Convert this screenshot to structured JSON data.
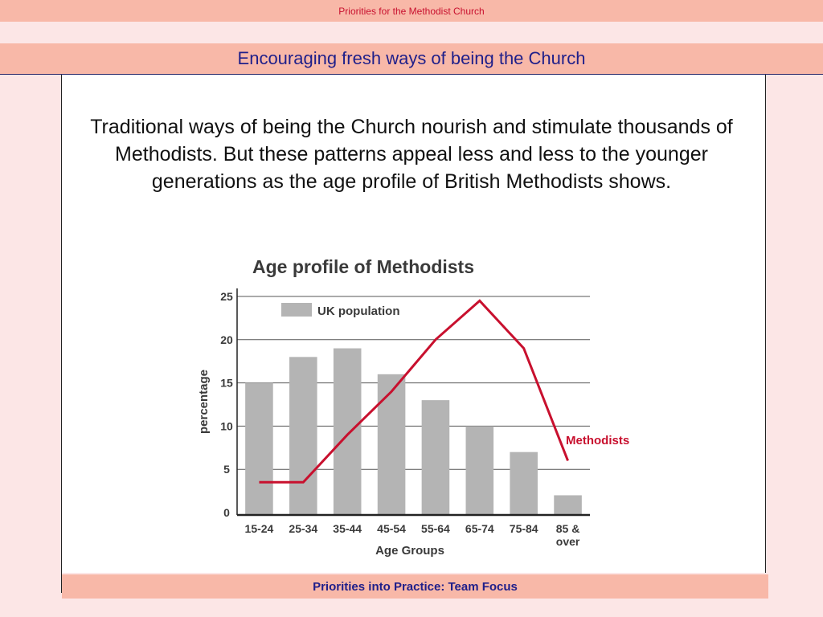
{
  "header": {
    "slide_series": "Priorities for the Methodist Church",
    "title": "Encouraging fresh ways of being the Church"
  },
  "body": {
    "intro": "Traditional ways of being the Church nourish and stimulate thousands of Methodists. But these patterns appeal less and less to the younger generations as the age profile of British Methodists shows."
  },
  "footer": {
    "label": "Priorities into Practice: Team Focus"
  },
  "colors": {
    "bar": "#b4b4b4",
    "line": "#c8102e",
    "accent_bar": "#f8b8a8",
    "title_blue": "#1f1f8a"
  },
  "chart_data": {
    "type": "bar",
    "title": "Age profile of Methodists",
    "xlabel": "Age Groups",
    "ylabel": "percentage",
    "ylim": [
      0,
      25
    ],
    "yticks": [
      "0",
      "5",
      "10",
      "15",
      "20",
      "25"
    ],
    "grid": true,
    "legend_position": "top-left",
    "categories": [
      "15-24",
      "25-34",
      "35-44",
      "45-54",
      "55-64",
      "65-74",
      "75-84",
      "85 & over"
    ],
    "series": [
      {
        "name": "UK population",
        "kind": "bar",
        "values": [
          15,
          18,
          19,
          16,
          13,
          10,
          7,
          2
        ]
      },
      {
        "name": "Methodists",
        "kind": "line",
        "values": [
          3.5,
          3.5,
          9,
          14,
          20,
          24.5,
          19,
          6
        ]
      }
    ]
  }
}
